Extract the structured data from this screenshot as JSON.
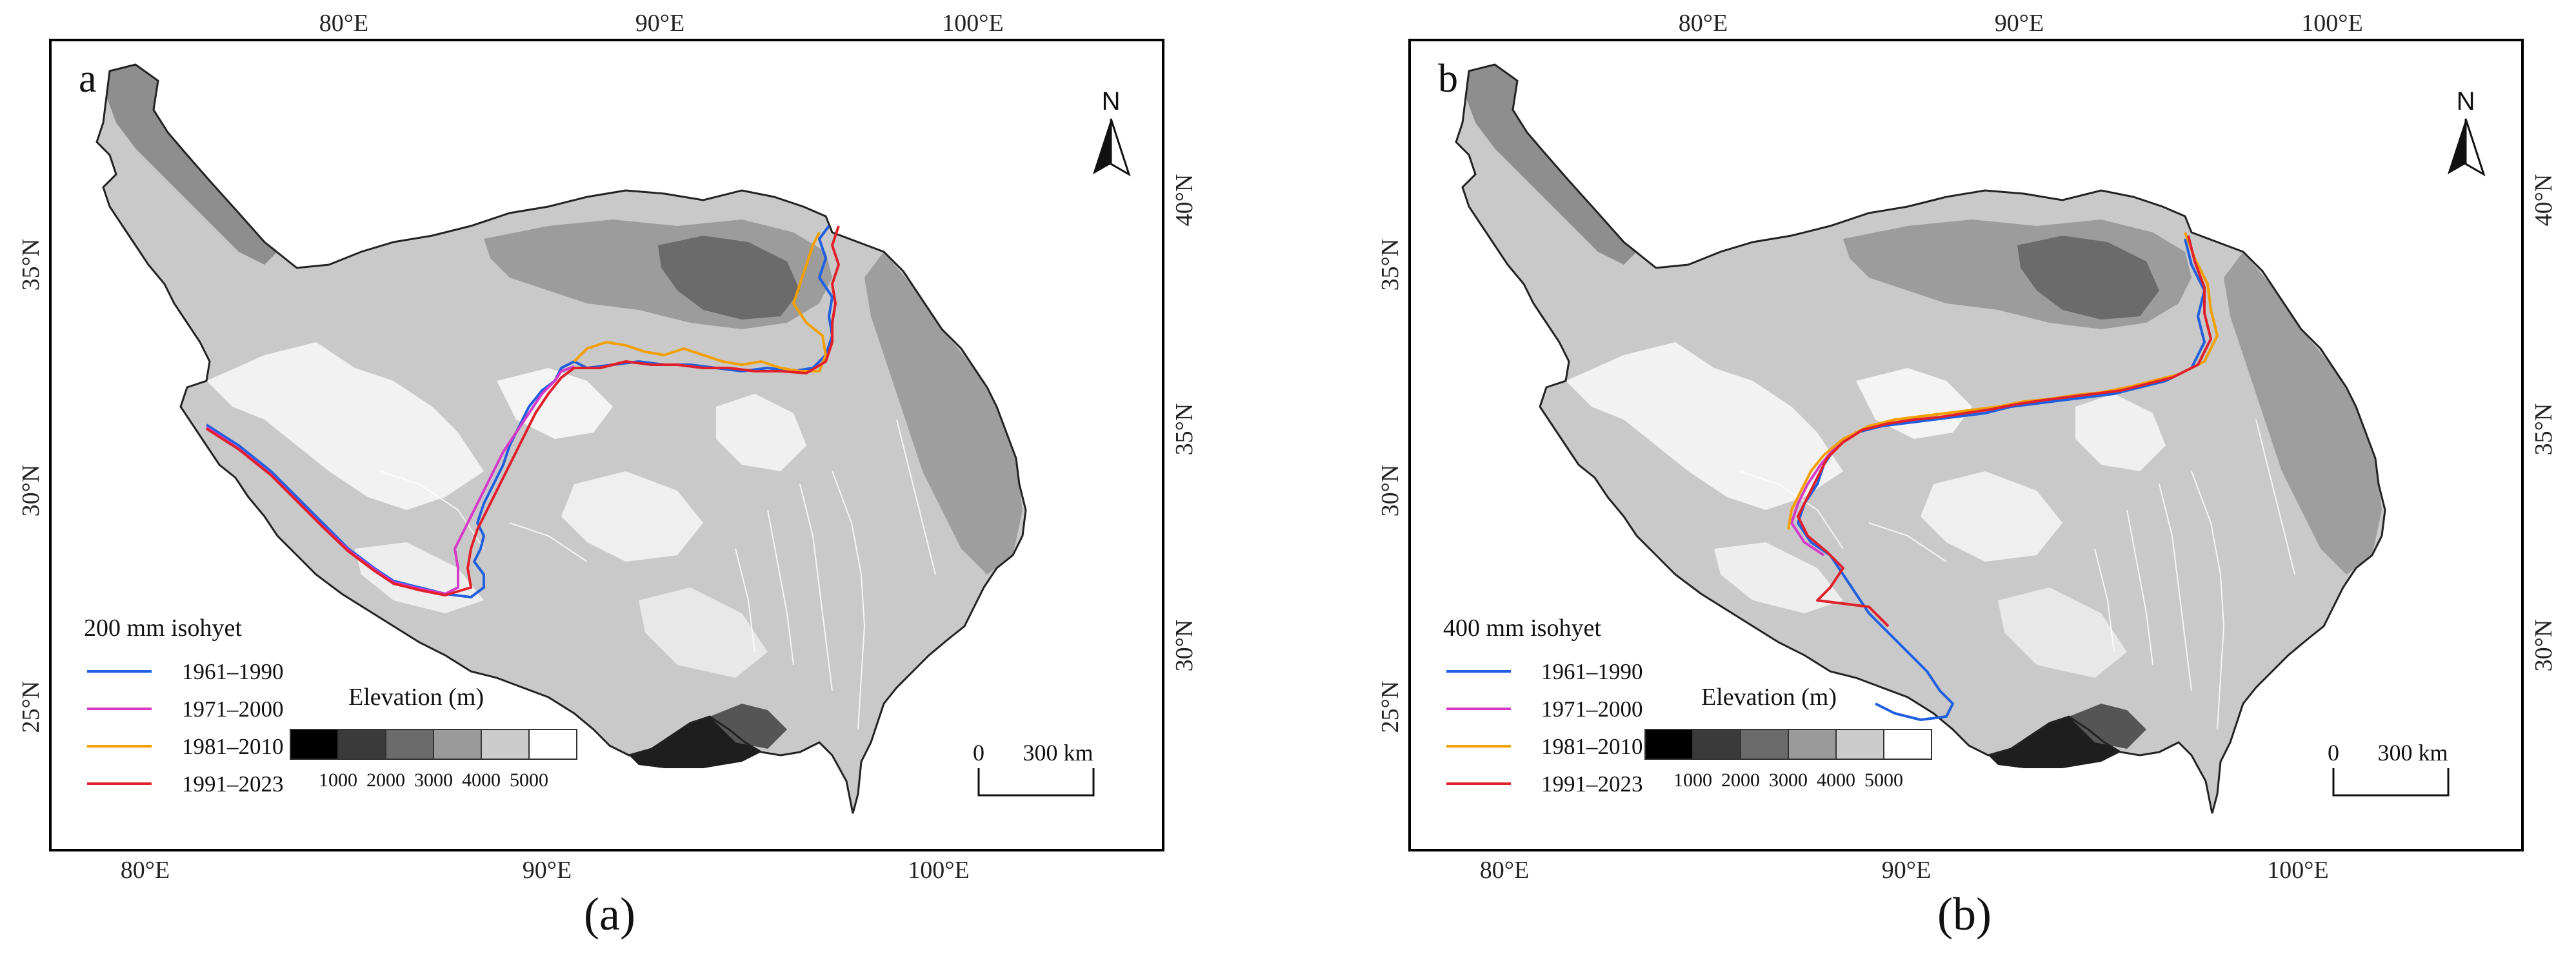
{
  "panels": [
    {
      "id": "a",
      "panel_letter": "a",
      "caption": "(a)",
      "lon_ticks_top": [
        "80°E",
        "90°E",
        "100°E"
      ],
      "lon_ticks_bottom": [
        "80°E",
        "90°E",
        "100°E"
      ],
      "lat_ticks_left": [
        "35°N",
        "30°N",
        "25°N"
      ],
      "lat_ticks_right": [
        "40°N",
        "35°N",
        "30°N"
      ],
      "legend_title": "200 mm isohyet",
      "legend_items": [
        {
          "label": "1961–1990",
          "color": "#1f5fe0"
        },
        {
          "label": "1971–2000",
          "color": "#d63ac8"
        },
        {
          "label": "1981–2010",
          "color": "#f2a000"
        },
        {
          "label": "1991–2023",
          "color": "#e0202a"
        }
      ],
      "elevation_title": "Elevation (m)",
      "elevation_ticks": [
        "1000",
        "2000",
        "3000",
        "4000",
        "5000"
      ],
      "elevation_colors": [
        "#000000",
        "#3a3a3a",
        "#6b6b6b",
        "#9a9a9a",
        "#cccccc",
        "#ffffff"
      ],
      "north_label": "N",
      "scale_start": "0",
      "scale_end": "300 km"
    },
    {
      "id": "b",
      "panel_letter": "b",
      "caption": "(b)",
      "lon_ticks_top": [
        "80°E",
        "90°E",
        "100°E"
      ],
      "lon_ticks_bottom": [
        "80°E",
        "90°E",
        "100°E"
      ],
      "lat_ticks_left": [
        "35°N",
        "30°N",
        "25°N"
      ],
      "lat_ticks_right": [
        "40°N",
        "35°N",
        "30°N"
      ],
      "legend_title": "400 mm isohyet",
      "legend_items": [
        {
          "label": "1961–1990",
          "color": "#1f5fe0"
        },
        {
          "label": "1971–2000",
          "color": "#d63ac8"
        },
        {
          "label": "1981–2010",
          "color": "#f2a000"
        },
        {
          "label": "1991–2023",
          "color": "#e0202a"
        }
      ],
      "elevation_title": "Elevation (m)",
      "elevation_ticks": [
        "1000",
        "2000",
        "3000",
        "4000",
        "5000"
      ],
      "elevation_colors": [
        "#000000",
        "#3a3a3a",
        "#6b6b6b",
        "#9a9a9a",
        "#cccccc",
        "#ffffff"
      ],
      "north_label": "N",
      "scale_start": "0",
      "scale_end": "300 km"
    }
  ]
}
